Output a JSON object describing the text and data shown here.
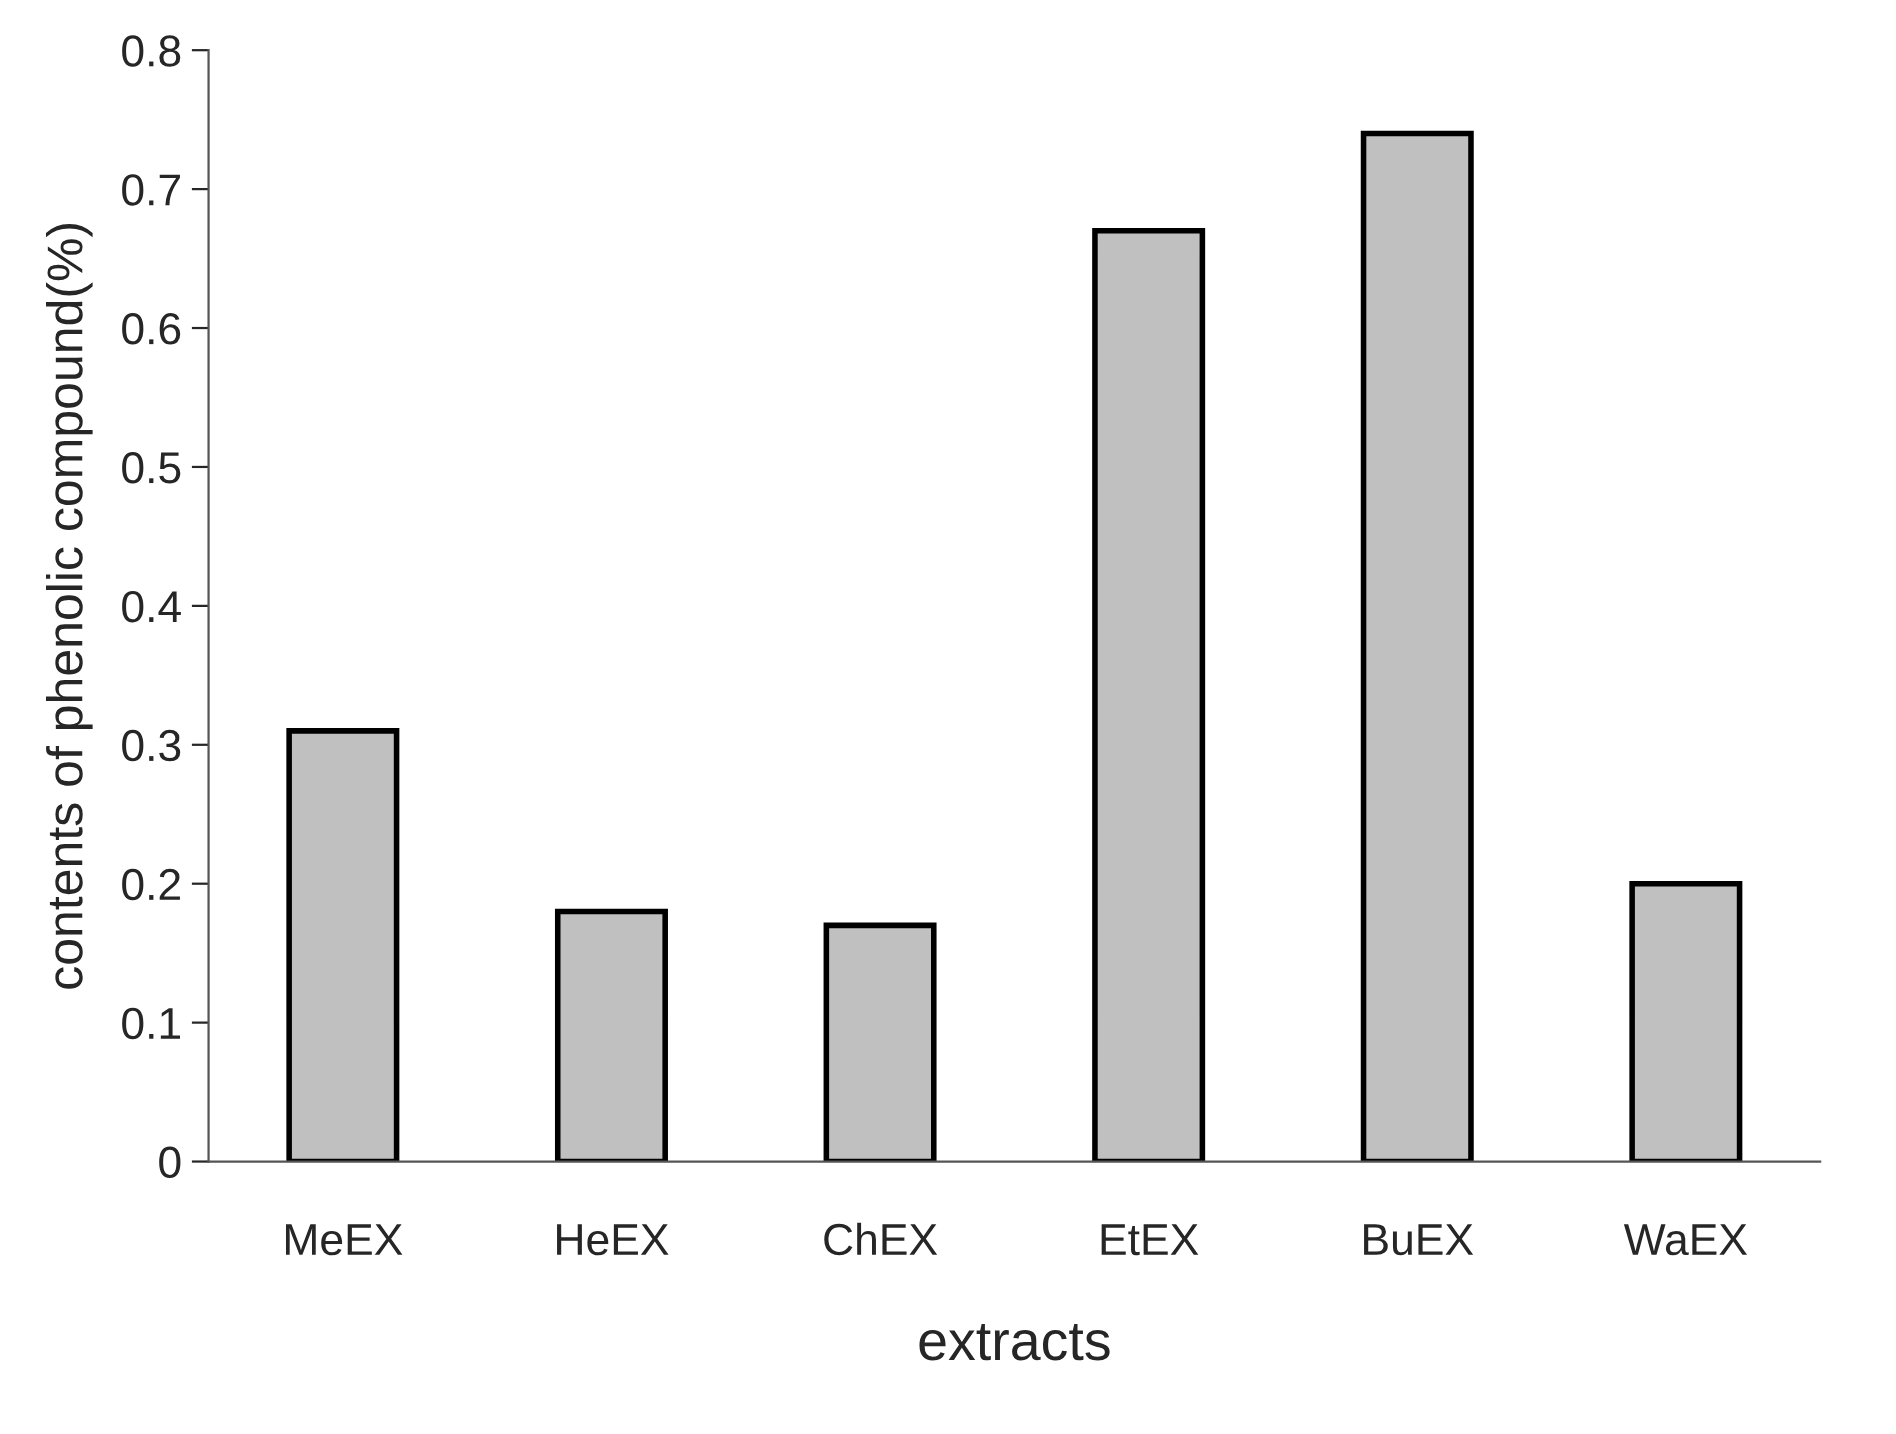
{
  "chart_data": {
    "type": "bar",
    "xlabel": "extracts",
    "ylabel": "contents of phenolic compound(%)",
    "categories": [
      "MeEX",
      "HeEX",
      "ChEX",
      "EtEX",
      "BuEX",
      "WaEX"
    ],
    "values": [
      0.31,
      0.18,
      0.17,
      0.67,
      0.74,
      0.2
    ],
    "color": "#c0c0c0",
    "ylim": [
      0,
      0.8
    ],
    "yticks": [
      0,
      0.1,
      0.2,
      0.3,
      0.4,
      0.5,
      0.6,
      0.7,
      0.8
    ],
    "grid": false,
    "legend": false
  }
}
